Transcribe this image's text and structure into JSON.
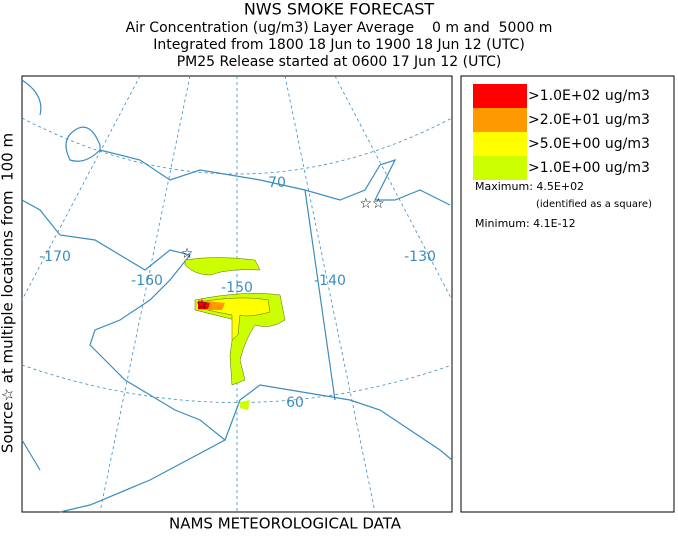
{
  "header": {
    "title": "NWS SMOKE FORECAST",
    "lines": [
      "Air Concentration (ug/m3) Layer Average    0 m and  5000 m",
      "Integrated from 1800 18 Jun to 1900 18 Jun 12 (UTC)",
      "PM25 Release started at 0600 17 Jun 12 (UTC)"
    ]
  },
  "side_label": "Source☆ at multiple locations from  100 m",
  "map": {
    "longitude_labels": [
      "-170",
      "-160",
      "-150",
      "-140",
      "-130"
    ],
    "latitude_labels": [
      "70",
      "60"
    ]
  },
  "legend": {
    "items": [
      {
        "label": ">1.0E+02 ug/m3",
        "color": "#ff0000"
      },
      {
        "label": ">2.0E+01 ug/m3",
        "color": "#ff9900"
      },
      {
        "label": ">5.0E+00 ug/m3",
        "color": "#ffff00"
      },
      {
        "label": ">1.0E+00 ug/m3",
        "color": "#ccff00"
      }
    ],
    "maximum": "Maximum: 4.5E+02",
    "maximum_note": "(identified as a square)",
    "minimum": "Minimum: 4.1E-12"
  },
  "footer": "NAMS METEOROLOGICAL DATA"
}
